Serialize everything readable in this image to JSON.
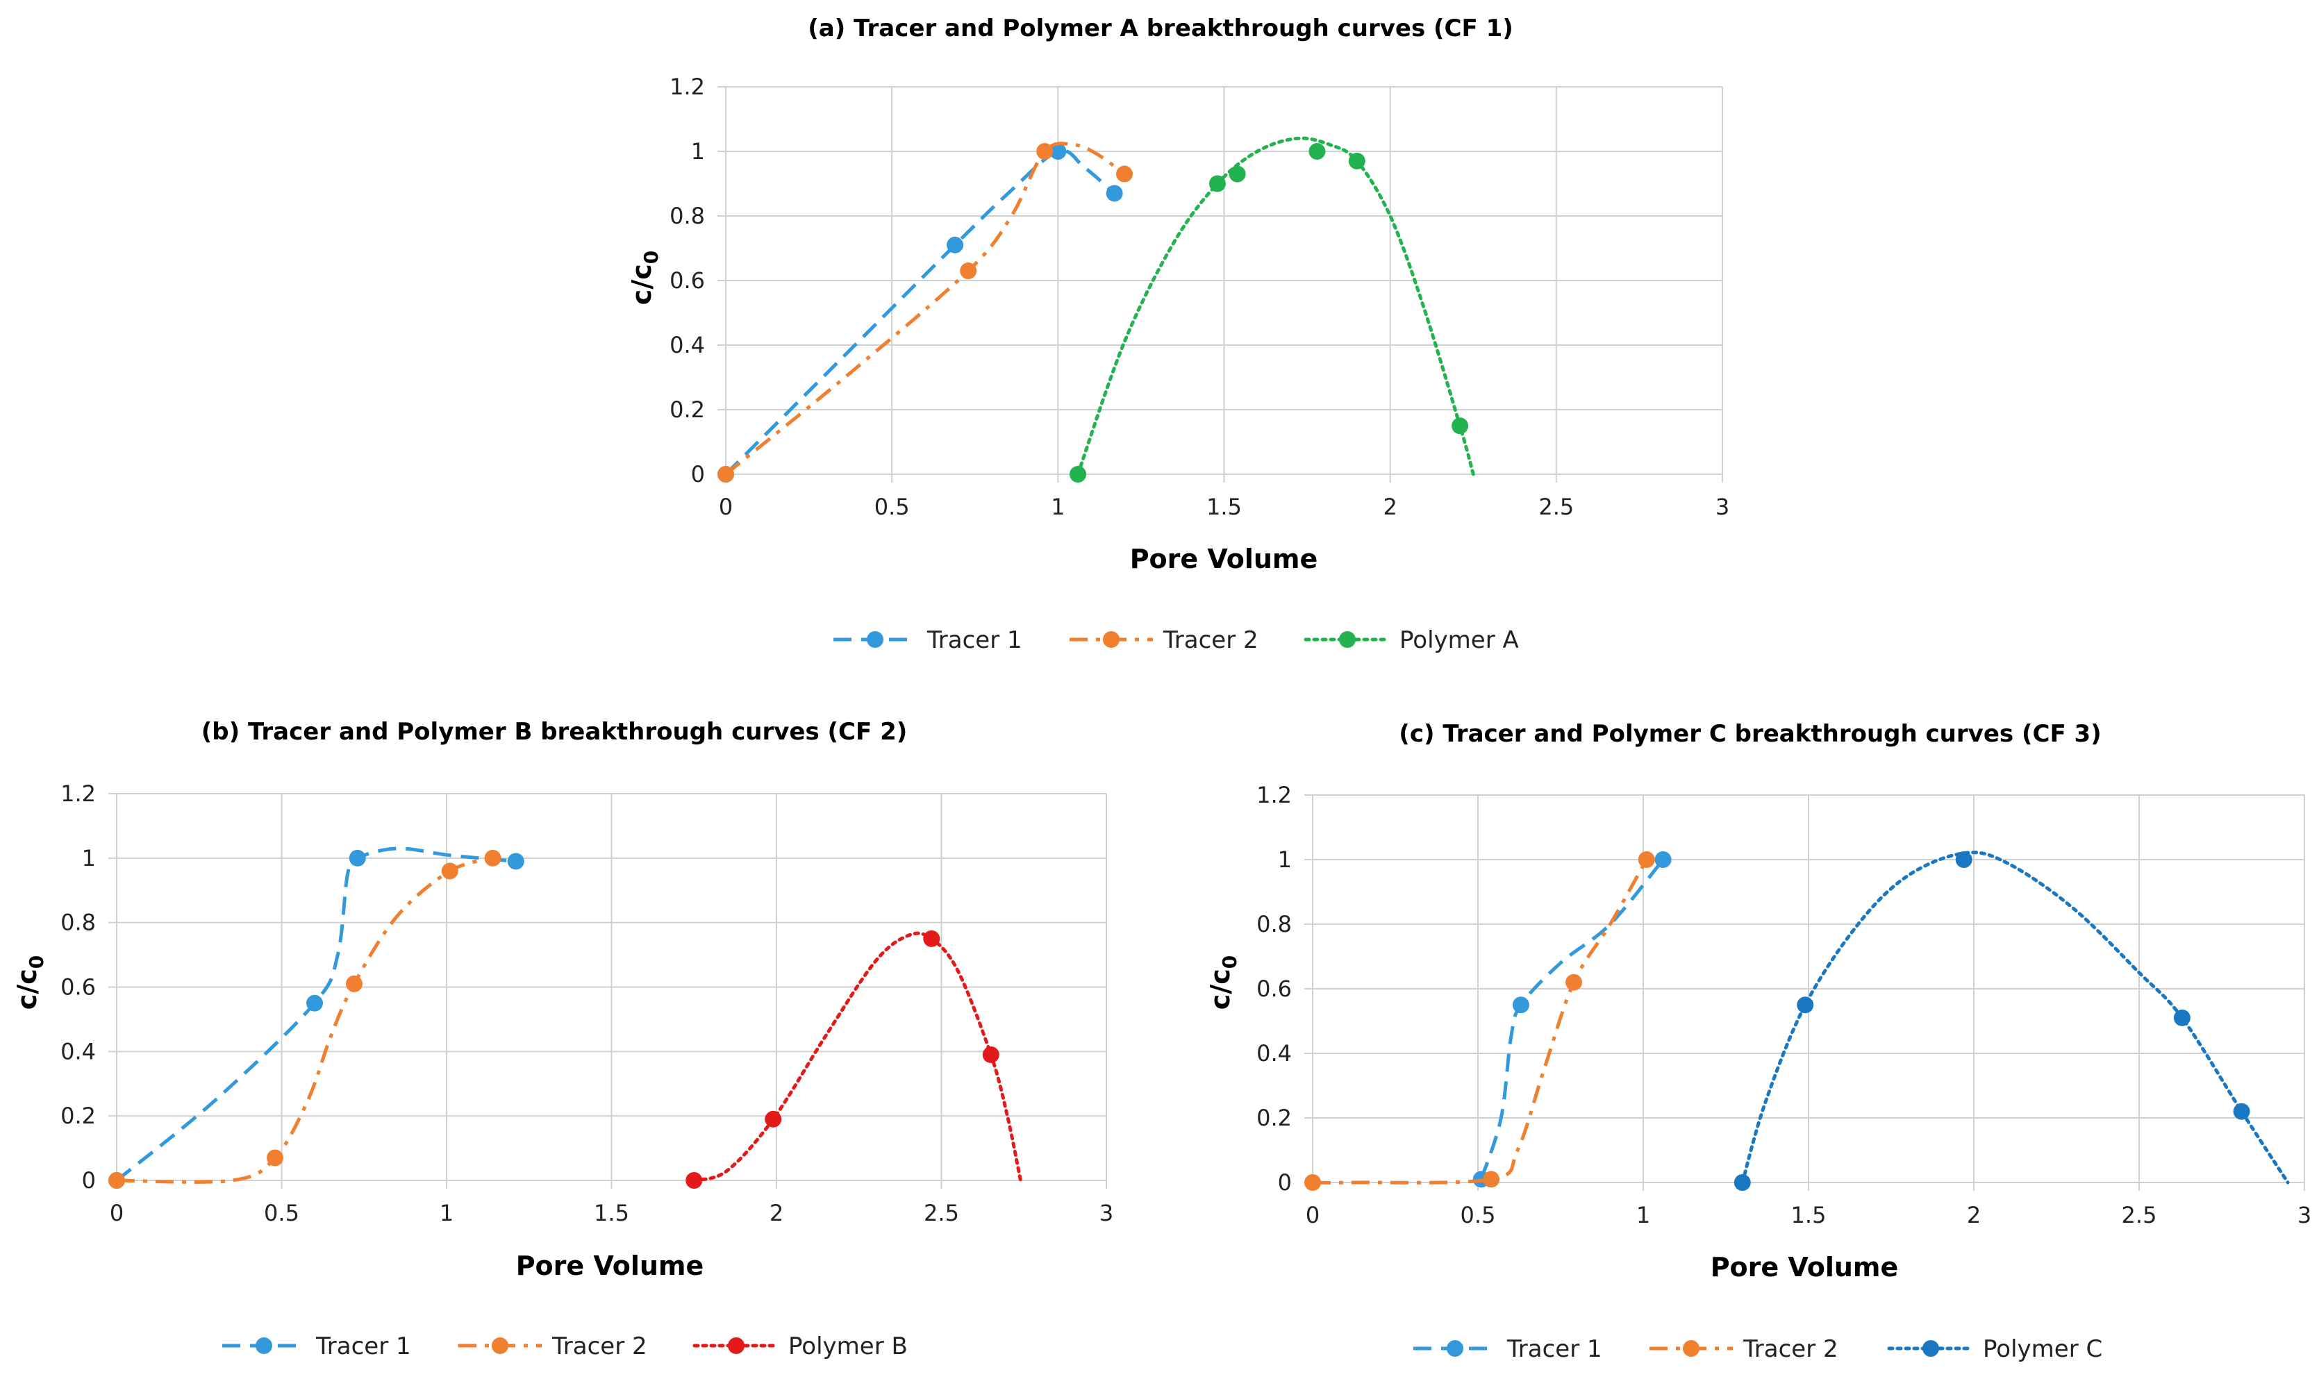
{
  "chart_data": [
    {
      "type": "scatter",
      "title": "(a) Tracer and Polymer A breakthrough curves (CF 1)",
      "xlabel": "Pore Volume",
      "ylabel_main": "c/c",
      "ylabel_sub": "0",
      "xlim": [
        0,
        3
      ],
      "ylim": [
        0,
        1.2
      ],
      "xticks": [
        "0",
        "0.5",
        "1",
        "1.5",
        "2",
        "2.5",
        "3"
      ],
      "yticks": [
        "0",
        "0.2",
        "0.4",
        "0.6",
        "0.8",
        "1",
        "1.2"
      ],
      "grid": true,
      "legend_position": "bottom",
      "series": [
        {
          "name": "Tracer 1",
          "color": "#3399dd",
          "dash": "dash",
          "points": [
            [
              0,
              0
            ],
            [
              0.69,
              0.71
            ],
            [
              1.0,
              1.0
            ],
            [
              1.17,
              0.87
            ]
          ],
          "curve": [
            [
              0,
              0
            ],
            [
              0.35,
              0.36
            ],
            [
              0.69,
              0.71
            ],
            [
              0.85,
              0.87
            ],
            [
              1.0,
              1.0
            ],
            [
              1.08,
              0.95
            ],
            [
              1.17,
              0.87
            ]
          ]
        },
        {
          "name": "Tracer 2",
          "color": "#f08030",
          "dash": "dashdot",
          "points": [
            [
              0,
              0
            ],
            [
              0.73,
              0.63
            ],
            [
              0.96,
              1.0
            ],
            [
              1.2,
              0.93
            ]
          ],
          "curve": [
            [
              0,
              0
            ],
            [
              0.37,
              0.31
            ],
            [
              0.73,
              0.63
            ],
            [
              0.86,
              0.8
            ],
            [
              0.96,
              1.0
            ],
            [
              1.05,
              1.02
            ],
            [
              1.12,
              0.99
            ],
            [
              1.2,
              0.93
            ]
          ]
        },
        {
          "name": "Polymer A",
          "color": "#22b250",
          "dash": "dot",
          "points": [
            [
              1.06,
              0
            ],
            [
              1.48,
              0.9
            ],
            [
              1.54,
              0.93
            ],
            [
              1.78,
              1.0
            ],
            [
              1.9,
              0.97
            ],
            [
              2.21,
              0.15
            ]
          ],
          "curve": [
            [
              1.06,
              0
            ],
            [
              1.2,
              0.41
            ],
            [
              1.35,
              0.72
            ],
            [
              1.48,
              0.9
            ],
            [
              1.6,
              1.0
            ],
            [
              1.72,
              1.04
            ],
            [
              1.82,
              1.02
            ],
            [
              1.9,
              0.97
            ],
            [
              2.0,
              0.8
            ],
            [
              2.1,
              0.52
            ],
            [
              2.21,
              0.15
            ],
            [
              2.25,
              0
            ]
          ]
        }
      ]
    },
    {
      "type": "scatter",
      "title": "(b) Tracer and Polymer B breakthrough curves (CF 2)",
      "xlabel": "Pore Volume",
      "ylabel_main": "c/c",
      "ylabel_sub": "0",
      "xlim": [
        0,
        3
      ],
      "ylim": [
        0,
        1.2
      ],
      "xticks": [
        "0",
        "0.5",
        "1",
        "1.5",
        "2",
        "2.5",
        "3"
      ],
      "yticks": [
        "0",
        "0.2",
        "0.4",
        "0.6",
        "0.8",
        "1",
        "1.2"
      ],
      "grid": true,
      "legend_position": "bottom",
      "series": [
        {
          "name": "Tracer 1",
          "color": "#3399dd",
          "dash": "dash",
          "points": [
            [
              0,
              0
            ],
            [
              0.6,
              0.55
            ],
            [
              0.73,
              1.0
            ],
            [
              1.21,
              0.99
            ]
          ],
          "curve": [
            [
              0,
              0
            ],
            [
              0.3,
              0.25
            ],
            [
              0.6,
              0.55
            ],
            [
              0.67,
              0.7
            ],
            [
              0.7,
              0.95
            ],
            [
              0.73,
              1.0
            ],
            [
              0.85,
              1.03
            ],
            [
              1.0,
              1.01
            ],
            [
              1.1,
              1.0
            ],
            [
              1.21,
              0.99
            ]
          ]
        },
        {
          "name": "Tracer 2",
          "color": "#f08030",
          "dash": "dashdot",
          "points": [
            [
              0,
              0
            ],
            [
              0.48,
              0.07
            ],
            [
              0.72,
              0.61
            ],
            [
              1.01,
              0.96
            ],
            [
              1.14,
              1.0
            ]
          ],
          "curve": [
            [
              0,
              0
            ],
            [
              0.35,
              0.0
            ],
            [
              0.48,
              0.07
            ],
            [
              0.58,
              0.25
            ],
            [
              0.65,
              0.45
            ],
            [
              0.72,
              0.61
            ],
            [
              0.85,
              0.82
            ],
            [
              1.01,
              0.96
            ],
            [
              1.14,
              1.0
            ]
          ]
        },
        {
          "name": "Polymer B",
          "color": "#e31a1a",
          "dash": "dot",
          "points": [
            [
              1.75,
              0
            ],
            [
              1.99,
              0.19
            ],
            [
              2.47,
              0.75
            ],
            [
              2.65,
              0.39
            ]
          ],
          "curve": [
            [
              1.75,
              0
            ],
            [
              1.85,
              0.03
            ],
            [
              1.99,
              0.19
            ],
            [
              2.15,
              0.45
            ],
            [
              2.3,
              0.68
            ],
            [
              2.4,
              0.76
            ],
            [
              2.47,
              0.75
            ],
            [
              2.55,
              0.65
            ],
            [
              2.65,
              0.39
            ],
            [
              2.7,
              0.2
            ],
            [
              2.74,
              0
            ]
          ]
        }
      ]
    },
    {
      "type": "scatter",
      "title": "(c) Tracer and Polymer C breakthrough curves (CF 3)",
      "xlabel": "Pore Volume",
      "ylabel_main": "c/c",
      "ylabel_sub": "0",
      "xlim": [
        0,
        3
      ],
      "ylim": [
        0,
        1.2
      ],
      "xticks": [
        "0",
        "0.5",
        "1",
        "1.5",
        "2",
        "2.5",
        "3"
      ],
      "yticks": [
        "0",
        "0.2",
        "0.4",
        "0.6",
        "0.8",
        "1",
        "1.2"
      ],
      "grid": true,
      "legend_position": "bottom",
      "series": [
        {
          "name": "Tracer 1",
          "color": "#3399dd",
          "dash": "dash",
          "points": [
            [
              0.51,
              0.01
            ],
            [
              0.63,
              0.55
            ],
            [
              1.06,
              1.0
            ]
          ],
          "curve": [
            [
              0.51,
              0.01
            ],
            [
              0.57,
              0.2
            ],
            [
              0.6,
              0.45
            ],
            [
              0.63,
              0.55
            ],
            [
              0.75,
              0.68
            ],
            [
              0.9,
              0.8
            ],
            [
              1.06,
              1.0
            ]
          ]
        },
        {
          "name": "Tracer 2",
          "color": "#f08030",
          "dash": "dashdot",
          "points": [
            [
              0,
              0
            ],
            [
              0.54,
              0.01
            ],
            [
              0.79,
              0.62
            ],
            [
              1.01,
              1.0
            ]
          ],
          "curve": [
            [
              0,
              0
            ],
            [
              0.12,
              0.0
            ],
            [
              0.54,
              0.01
            ],
            [
              0.62,
              0.1
            ],
            [
              0.7,
              0.35
            ],
            [
              0.79,
              0.62
            ],
            [
              0.9,
              0.8
            ],
            [
              1.01,
              1.0
            ]
          ]
        },
        {
          "name": "Polymer C",
          "color": "#1a78c2",
          "dash": "dot",
          "points": [
            [
              1.3,
              0
            ],
            [
              1.49,
              0.55
            ],
            [
              1.97,
              1.0
            ],
            [
              2.63,
              0.51
            ],
            [
              2.81,
              0.22
            ]
          ],
          "curve": [
            [
              1.3,
              0
            ],
            [
              1.37,
              0.25
            ],
            [
              1.49,
              0.55
            ],
            [
              1.65,
              0.8
            ],
            [
              1.8,
              0.95
            ],
            [
              1.97,
              1.02
            ],
            [
              2.1,
              0.99
            ],
            [
              2.3,
              0.85
            ],
            [
              2.5,
              0.65
            ],
            [
              2.63,
              0.51
            ],
            [
              2.81,
              0.22
            ],
            [
              2.95,
              0
            ]
          ]
        }
      ]
    }
  ]
}
